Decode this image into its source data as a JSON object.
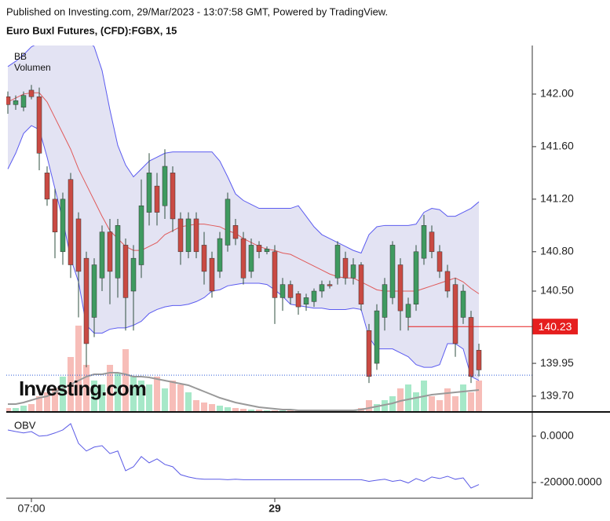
{
  "header": {
    "published": "Published on Investing.com, 29/Mar/2023 - 13:07:58 GMT, Powered by TradingView."
  },
  "chart_data": [
    {
      "type": "candlestick",
      "title": "Euro Buxl Futures, (CFD):FGBX, 15",
      "indicator_labels": [
        "BB",
        "Volumen"
      ],
      "watermark": "Investing.com",
      "categories": [
        null,
        null,
        null,
        "07:00",
        null,
        null,
        null,
        null,
        null,
        null,
        null,
        null,
        null,
        null,
        null,
        null,
        null,
        null,
        null,
        null,
        null,
        null,
        null,
        null,
        null,
        null,
        null,
        null,
        null,
        null,
        null,
        null,
        null,
        null,
        "29",
        null,
        null,
        null,
        null,
        null,
        null,
        null,
        null,
        null,
        null,
        null,
        null,
        null,
        null,
        null,
        null,
        null,
        null,
        null,
        null,
        null,
        null,
        null,
        null,
        null,
        null
      ],
      "ohlc": [
        [
          141.98,
          142.02,
          141.85,
          141.92
        ],
        [
          141.92,
          141.99,
          141.88,
          141.95
        ],
        [
          141.9,
          142.02,
          141.87,
          141.99
        ],
        [
          142.03,
          142.07,
          141.96,
          141.98
        ],
        [
          141.98,
          142.05,
          141.42,
          141.55
        ],
        [
          141.4,
          141.45,
          141.15,
          141.2
        ],
        [
          141.2,
          141.28,
          140.75,
          140.95
        ],
        [
          140.8,
          141.25,
          140.7,
          141.2
        ],
        [
          141.35,
          141.4,
          140.6,
          140.7
        ],
        [
          141.05,
          141.1,
          140.3,
          140.65
        ],
        [
          140.75,
          140.8,
          139.92,
          140.1
        ],
        [
          140.3,
          140.75,
          140.15,
          140.7
        ],
        [
          140.6,
          141.0,
          140.5,
          140.95
        ],
        [
          140.95,
          141.05,
          140.4,
          140.65
        ],
        [
          140.6,
          141.05,
          140.45,
          141.0
        ],
        [
          140.85,
          140.9,
          140.2,
          140.45
        ],
        [
          140.5,
          140.85,
          140.2,
          140.75
        ],
        [
          140.7,
          141.35,
          140.6,
          141.15
        ],
        [
          141.1,
          141.55,
          141.0,
          141.4
        ],
        [
          141.3,
          141.4,
          141.0,
          141.1
        ],
        [
          141.15,
          141.58,
          141.05,
          141.45
        ],
        [
          141.4,
          141.45,
          140.95,
          141.05
        ],
        [
          141.05,
          141.1,
          140.7,
          140.8
        ],
        [
          140.8,
          141.1,
          140.75,
          141.05
        ],
        [
          141.05,
          141.1,
          140.75,
          140.8
        ],
        [
          140.85,
          140.95,
          140.55,
          140.65
        ],
        [
          140.75,
          140.8,
          140.45,
          140.5
        ],
        [
          140.65,
          140.95,
          140.6,
          140.9
        ],
        [
          140.85,
          141.25,
          140.8,
          141.2
        ],
        [
          141.0,
          141.05,
          140.85,
          140.9
        ],
        [
          140.9,
          140.95,
          140.55,
          140.6
        ],
        [
          140.65,
          140.9,
          140.6,
          140.85
        ],
        [
          140.85,
          140.88,
          140.75,
          140.8
        ],
        [
          140.8,
          140.84,
          140.78,
          140.82
        ],
        [
          140.8,
          140.85,
          140.25,
          140.45
        ],
        [
          140.45,
          140.6,
          140.35,
          140.55
        ],
        [
          140.55,
          140.58,
          140.4,
          140.45
        ],
        [
          140.48,
          140.5,
          140.32,
          140.38
        ],
        [
          140.4,
          140.48,
          140.35,
          140.45
        ],
        [
          140.42,
          140.52,
          140.38,
          140.5
        ],
        [
          140.5,
          140.58,
          140.45,
          140.55
        ],
        [
          140.55,
          140.58,
          140.52,
          140.54
        ],
        [
          140.6,
          140.88,
          140.55,
          140.85
        ],
        [
          140.75,
          140.8,
          140.55,
          140.6
        ],
        [
          140.6,
          140.75,
          140.55,
          140.7
        ],
        [
          140.7,
          140.72,
          140.35,
          140.4
        ],
        [
          140.2,
          140.25,
          139.8,
          139.85
        ],
        [
          139.95,
          140.4,
          139.9,
          140.35
        ],
        [
          140.3,
          140.6,
          140.2,
          140.55
        ],
        [
          140.45,
          140.88,
          140.4,
          140.85
        ],
        [
          140.7,
          140.75,
          140.2,
          140.35
        ],
        [
          140.3,
          140.45,
          140.2,
          140.4
        ],
        [
          140.4,
          140.85,
          140.35,
          140.8
        ],
        [
          140.75,
          141.08,
          140.7,
          141.0
        ],
        [
          140.95,
          141.0,
          140.75,
          140.8
        ],
        [
          140.8,
          140.85,
          140.6,
          140.65
        ],
        [
          140.65,
          140.7,
          140.45,
          140.5
        ],
        [
          140.55,
          140.6,
          140.0,
          140.1
        ],
        [
          140.3,
          140.55,
          140.25,
          140.5
        ],
        [
          140.3,
          140.35,
          139.8,
          139.85
        ],
        [
          140.05,
          140.1,
          139.85,
          139.9
        ]
      ],
      "bb": {
        "upper": [
          142.21,
          142.25,
          142.3,
          142.36,
          142.39,
          142.42,
          142.42,
          142.42,
          142.42,
          142.42,
          142.42,
          142.36,
          142.18,
          141.88,
          141.61,
          141.46,
          141.37,
          141.43,
          141.49,
          141.52,
          141.55,
          141.56,
          141.56,
          141.56,
          141.56,
          141.56,
          141.56,
          141.49,
          141.37,
          141.24,
          141.19,
          141.16,
          141.13,
          141.13,
          141.13,
          141.13,
          141.13,
          141.15,
          141.07,
          140.99,
          140.93,
          140.9,
          140.87,
          140.84,
          140.81,
          140.79,
          140.93,
          140.99,
          141.0,
          141.0,
          141.0,
          141.0,
          141.01,
          141.1,
          141.13,
          141.12,
          141.07,
          141.07,
          141.1,
          141.13,
          141.18
        ],
        "middle": [
          141.94,
          141.97,
          142.0,
          142.01,
          142.01,
          141.94,
          141.82,
          141.7,
          141.58,
          141.43,
          141.31,
          141.19,
          141.07,
          140.96,
          140.9,
          140.84,
          140.81,
          140.81,
          140.84,
          140.87,
          140.93,
          140.96,
          140.99,
          141.0,
          141.01,
          141.01,
          141.0,
          140.99,
          140.96,
          140.94,
          140.9,
          140.87,
          140.84,
          140.82,
          140.81,
          140.79,
          140.78,
          140.75,
          140.72,
          140.69,
          140.66,
          140.63,
          140.61,
          140.6,
          140.6,
          140.57,
          140.54,
          140.51,
          140.5,
          140.5,
          140.5,
          140.5,
          140.5,
          140.52,
          140.54,
          140.56,
          140.58,
          140.6,
          140.57,
          140.52,
          140.48
        ],
        "lower": [
          141.43,
          141.55,
          141.7,
          141.76,
          141.73,
          141.52,
          141.28,
          141.04,
          140.75,
          140.57,
          140.24,
          140.18,
          140.18,
          140.21,
          140.22,
          140.22,
          140.24,
          140.27,
          140.33,
          140.36,
          140.38,
          140.39,
          140.39,
          140.4,
          140.42,
          140.45,
          140.5,
          140.51,
          140.54,
          140.55,
          140.56,
          140.56,
          140.56,
          140.55,
          140.51,
          140.46,
          140.4,
          140.39,
          140.38,
          140.37,
          140.37,
          140.36,
          140.36,
          140.36,
          140.37,
          140.36,
          140.15,
          140.06,
          140.06,
          140.06,
          140.03,
          140.0,
          139.94,
          139.92,
          139.92,
          139.94,
          140.1,
          140.1,
          140.06,
          139.85,
          139.82
        ],
        "colors": {
          "band": "#5b5bf0",
          "middle": "#e05a5a",
          "fill": "#e3e3f3"
        }
      },
      "volume": [
        5,
        5,
        8,
        10,
        20,
        25,
        30,
        45,
        70,
        110,
        60,
        40,
        35,
        60,
        50,
        80,
        45,
        40,
        35,
        45,
        30,
        40,
        35,
        25,
        15,
        12,
        10,
        8,
        6,
        5,
        4,
        3,
        3,
        2,
        2,
        2,
        2,
        2,
        2,
        2,
        2,
        2,
        2,
        2,
        2,
        5,
        15,
        10,
        15,
        20,
        30,
        35,
        25,
        40,
        20,
        15,
        30,
        20,
        35,
        25,
        40
      ],
      "volume_ma": [
        10,
        10,
        12,
        15,
        18,
        20,
        25,
        30,
        35,
        40,
        45,
        48,
        48,
        50,
        50,
        48,
        45,
        45,
        44,
        42,
        40,
        38,
        36,
        34,
        30,
        26,
        22,
        18,
        15,
        12,
        10,
        8,
        6,
        5,
        4,
        3,
        3,
        2,
        2,
        2,
        2,
        2,
        2,
        2,
        2,
        3,
        5,
        7,
        9,
        11,
        14,
        16,
        18,
        20,
        22,
        23,
        24,
        25,
        26,
        27,
        28
      ],
      "up_color": "#3f9a60",
      "down_color": "#c94a43",
      "volume_up_color": "#a6e8c8",
      "volume_down_color": "#f7bdb8",
      "last_price": 140.23,
      "last_price_color": "#e61e1e",
      "price_line": 139.86,
      "ylim": [
        139.58,
        142.37
      ],
      "yticks": [
        {
          "value": 142,
          "label": "142.00"
        },
        {
          "value": 141.6,
          "label": "141.60"
        },
        {
          "value": 141.2,
          "label": "141.20"
        },
        {
          "value": 140.8,
          "label": "140.80"
        },
        {
          "value": 140.5,
          "label": "140.50"
        },
        139.95,
        {
          "value": 139.7,
          "label": "139.70"
        }
      ]
    },
    {
      "type": "line",
      "title": "OBV",
      "color": "#5a5ae6",
      "values": [
        2700,
        2000,
        1400,
        2000,
        0,
        300,
        1400,
        2700,
        5400,
        -3100,
        -6400,
        -4700,
        -4100,
        -7500,
        -6400,
        -14900,
        -13200,
        -8800,
        -11500,
        -9800,
        -12200,
        -13200,
        -16600,
        -17600,
        -18300,
        -18600,
        -18600,
        -18600,
        -18800,
        -18600,
        -18800,
        -18800,
        -18800,
        -18800,
        -18800,
        -18800,
        -18800,
        -18800,
        -18800,
        -18800,
        -18800,
        -18800,
        -18800,
        -18800,
        -18800,
        -18800,
        -19500,
        -19000,
        -18600,
        -19500,
        -19000,
        -20200,
        -18300,
        -19500,
        -17600,
        -18300,
        -17300,
        -18600,
        -18000,
        -22400,
        -20900
      ],
      "ylim": [
        -26800,
        9800
      ],
      "yticks": [
        {
          "value": 0,
          "label": "0.0000"
        },
        {
          "value": -20000,
          "label": "-20000.0000"
        }
      ]
    }
  ]
}
